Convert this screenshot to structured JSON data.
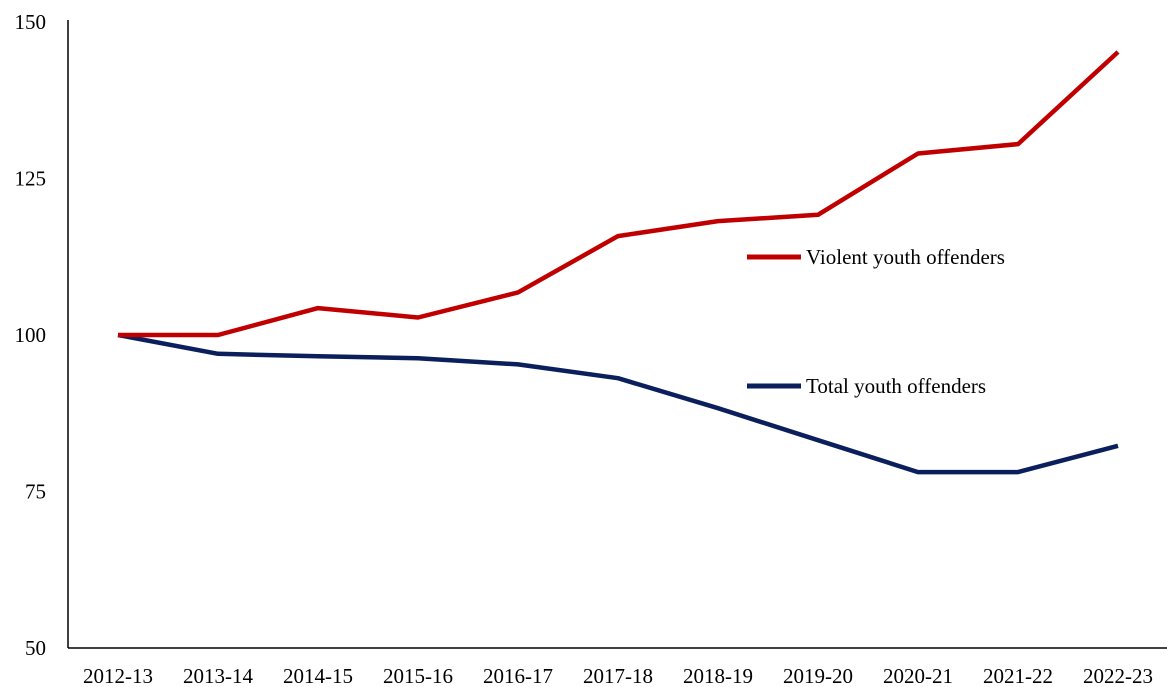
{
  "chart_data": {
    "type": "line",
    "title": "",
    "xlabel": "",
    "ylabel": "",
    "categories": [
      "2012-13",
      "2013-14",
      "2014-15",
      "2015-16",
      "2016-17",
      "2017-18",
      "2018-19",
      "2019-20",
      "2020-21",
      "2021-22",
      "2022-23"
    ],
    "ylim": [
      50,
      150
    ],
    "yticks": [
      50,
      75,
      100,
      125,
      150
    ],
    "grid": false,
    "legend_placement": "right, inline",
    "series": [
      {
        "name": "Violent youth offenders",
        "color": "#c00000",
        "values": [
          100,
          100,
          104.3,
          102.8,
          106.8,
          115.8,
          118.2,
          119.2,
          129.0,
          130.5,
          145.2
        ]
      },
      {
        "name": "Total youth offenders",
        "color": "#0a1f5c",
        "values": [
          100,
          97.0,
          96.6,
          96.3,
          95.3,
          93.1,
          88.3,
          83.2,
          78.1,
          78.1,
          82.3
        ]
      }
    ]
  }
}
